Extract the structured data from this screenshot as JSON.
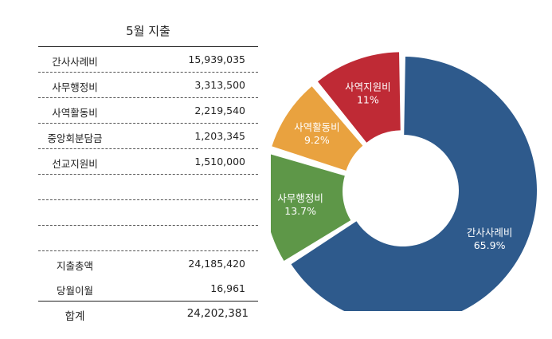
{
  "title": "5월 지출",
  "rows": [
    {
      "label": "간사사례비",
      "value": "15,939,035"
    },
    {
      "label": "사무행정비",
      "value": "3,313,500"
    },
    {
      "label": "사역활동비",
      "value": "2,219,540"
    },
    {
      "label": "중앙회분담금",
      "value": "1,203,345"
    },
    {
      "label": "선교지원비",
      "value": "1,510,000"
    },
    {
      "label": "",
      "value": ""
    },
    {
      "label": "",
      "value": ""
    },
    {
      "label": "",
      "value": ""
    }
  ],
  "total": {
    "label": "지출총액",
    "value": "24,185,420"
  },
  "balance": {
    "label": "당월이월",
    "value": "16,961"
  },
  "grand": {
    "label": "합계",
    "value": "24,202,381"
  },
  "chart_data": {
    "type": "pie",
    "slices": [
      {
        "label": "간사사례비",
        "percent_label": "65.9%",
        "value": 65.9,
        "color": "#2e5a8c"
      },
      {
        "label": "사무행정비",
        "percent_label": "13.7%",
        "value": 13.7,
        "color": "#5e9748"
      },
      {
        "label": "사역활동비",
        "percent_label": "9.2%",
        "value": 9.2,
        "color": "#e9a23f"
      },
      {
        "label": "사역지원비",
        "percent_label": "11%",
        "value": 11,
        "color": "#bf2a35"
      }
    ]
  }
}
